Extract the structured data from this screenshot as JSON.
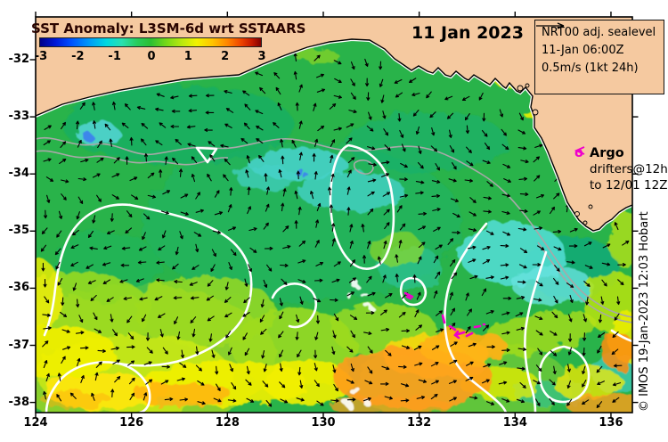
{
  "figure": {
    "title": "SST Anomaly: L3SM-6d wrt SSTAARS",
    "date_label": "11 Jan 2023",
    "credit": "© IMOS 19-Jan-2023 12:03 Hobart"
  },
  "colorbar": {
    "tick_labels": [
      "-3",
      "-2",
      "-1",
      "0",
      "1",
      "2",
      "3"
    ],
    "gradient_stops": [
      [
        "0",
        "#000089"
      ],
      [
        "7",
        "#0018d8"
      ],
      [
        "14",
        "#0050ff"
      ],
      [
        "22",
        "#0098f8"
      ],
      [
        "30",
        "#00d8e0"
      ],
      [
        "37",
        "#28e0b0"
      ],
      [
        "44",
        "#28cc5c"
      ],
      [
        "50",
        "#2abf33"
      ],
      [
        "57",
        "#74d818"
      ],
      [
        "64",
        "#b8e810"
      ],
      [
        "71",
        "#f2f200"
      ],
      [
        "78",
        "#ffc400"
      ],
      [
        "85",
        "#ff8400"
      ],
      [
        "91",
        "#ee4400"
      ],
      [
        "96",
        "#c41800"
      ],
      [
        "100",
        "#800000"
      ]
    ]
  },
  "info_box": {
    "line1": "NRT00 adj. sealevel",
    "line2": "11-Jan 06:00Z",
    "line3": "0.5m/s (1kt 24h)"
  },
  "argo": {
    "symbol": "o",
    "label": "Argo",
    "line1": "drifters@12h",
    "line2": "to 12/01 12Z"
  },
  "axes": {
    "x_ticks": [
      124,
      126,
      128,
      130,
      132,
      134,
      136
    ],
    "y_ticks": [
      -32,
      -33,
      -34,
      -35,
      -36,
      -37,
      -38
    ]
  },
  "chart_data": {
    "type": "heatmap",
    "title": "SST Anomaly: L3SM-6d wrt SSTAARS",
    "x_ticks": [
      124,
      126,
      128,
      130,
      132,
      134,
      136
    ],
    "y_ticks": [
      -32,
      -33,
      -34,
      -35,
      -36,
      -37,
      -38
    ],
    "colorbar_range": [
      -3,
      3
    ]
  },
  "colors": {
    "land": "#f5c9a0",
    "ocean_base": "#29b34a",
    "contour_sla": "#ffffff",
    "contour_shelf": "#a8a8a8",
    "vectors": "#000000",
    "drifters": "#ee00cc",
    "frame": "#000000",
    "title_color": "#2a0400"
  }
}
